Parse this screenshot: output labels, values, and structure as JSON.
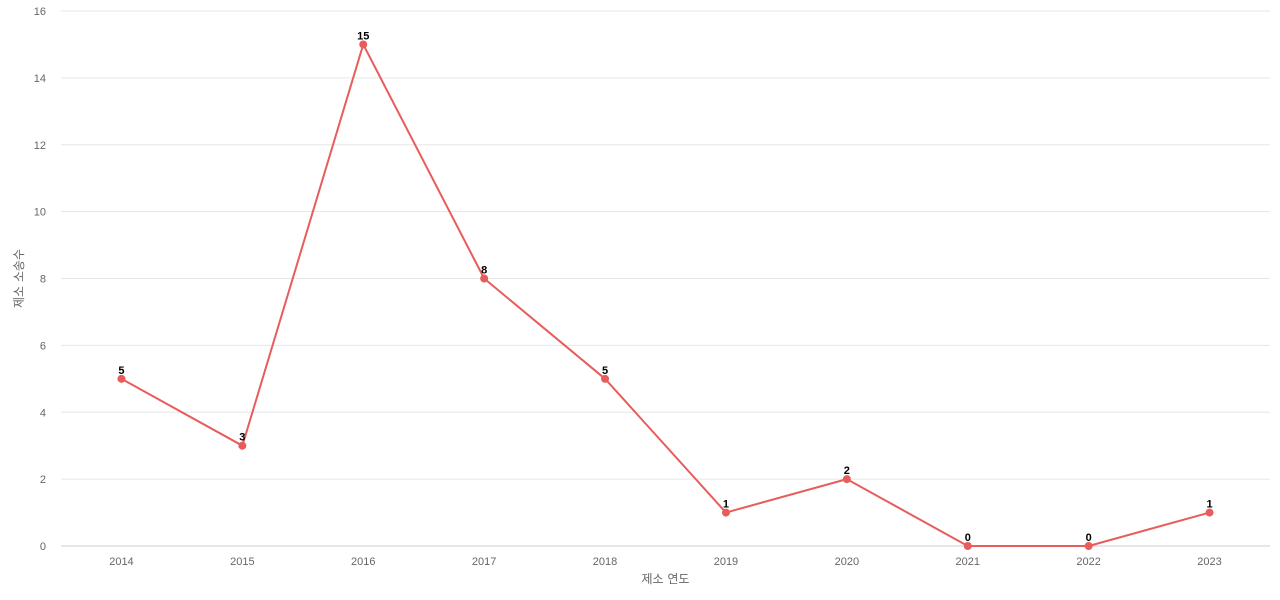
{
  "chart_data": {
    "type": "line",
    "categories": [
      "2014",
      "2015",
      "2016",
      "2017",
      "2018",
      "2019",
      "2020",
      "2021",
      "2022",
      "2023"
    ],
    "series": [
      {
        "values": [
          5,
          3,
          15,
          8,
          5,
          1,
          2,
          0,
          0,
          1
        ],
        "color": "#e85c5c"
      }
    ],
    "xlabel": "제소 연도",
    "ylabel": "제소 소송수",
    "ylim": [
      0,
      16
    ],
    "yticks": [
      0,
      2,
      4,
      6,
      8,
      10,
      12,
      14,
      16
    ],
    "grid": true,
    "data_labels": true,
    "legend": "none"
  }
}
